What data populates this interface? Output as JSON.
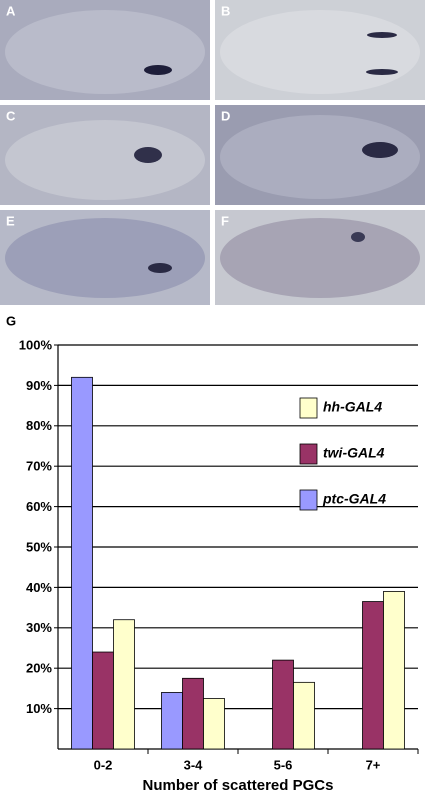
{
  "panel_labels": [
    "A",
    "B",
    "C",
    "D",
    "E",
    "F"
  ],
  "chart_data": {
    "type": "bar",
    "title": "G",
    "x_label": "Number of scattered PGCs",
    "categories": [
      "0-2",
      "3-4",
      "5-6",
      "7+"
    ],
    "series": [
      {
        "name": "ptc-GAL4",
        "color": "#9999ff",
        "values": [
          92,
          14,
          0,
          0
        ]
      },
      {
        "name": "twi-GAL4",
        "color": "#993366",
        "values": [
          24,
          17.5,
          22,
          36.5
        ]
      },
      {
        "name": "hh-GAL4",
        "color": "#ffffcc",
        "values": [
          32,
          12.5,
          16.5,
          39
        ]
      }
    ],
    "ylim": [
      0,
      100
    ],
    "yticks": [
      {
        "value": 10,
        "label": "10%"
      },
      {
        "value": 20,
        "label": "20%"
      },
      {
        "value": 30,
        "label": "30%"
      },
      {
        "value": 40,
        "label": "40%"
      },
      {
        "value": 50,
        "label": "50%"
      },
      {
        "value": 60,
        "label": "60%"
      },
      {
        "value": 70,
        "label": "70%"
      },
      {
        "value": 80,
        "label": "80%"
      },
      {
        "value": 90,
        "label": "90%"
      },
      {
        "value": 100,
        "label": "100%"
      }
    ],
    "grid": true,
    "legend": "upper right"
  }
}
